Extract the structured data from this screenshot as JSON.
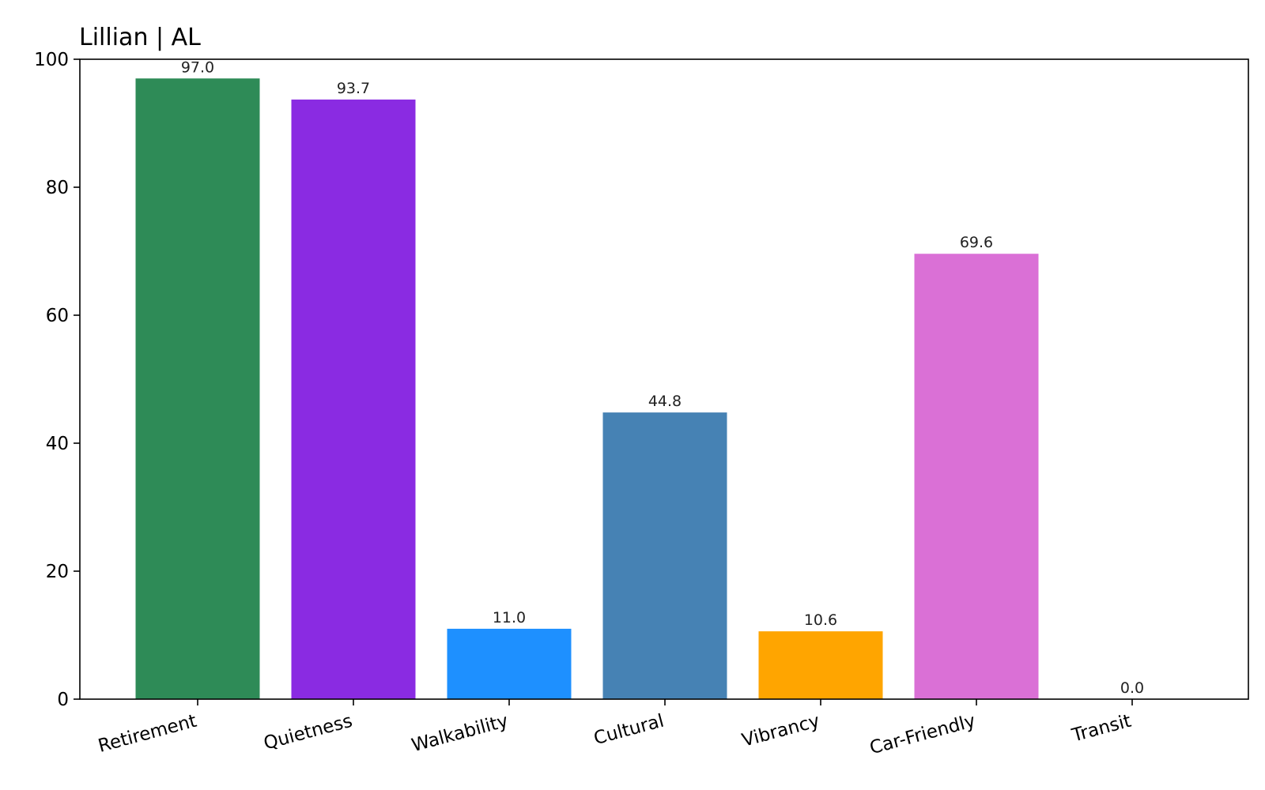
{
  "chart_data": {
    "type": "bar",
    "title": "Lillian | AL",
    "xlabel": "",
    "ylabel": "",
    "categories": [
      "Retirement",
      "Quietness",
      "Walkability",
      "Cultural",
      "Vibrancy",
      "Car-Friendly",
      "Transit"
    ],
    "values": [
      97.0,
      93.7,
      11.0,
      44.8,
      10.6,
      69.6,
      0.0
    ],
    "value_labels": [
      "97.0",
      "93.7",
      "11.0",
      "44.8",
      "10.6",
      "69.6",
      "0.0"
    ],
    "colors": [
      "#2e8b57",
      "#8a2be2",
      "#1e90ff",
      "#4682b4",
      "#ffa500",
      "#da70d6",
      "#808080"
    ],
    "ylim": [
      0,
      100
    ],
    "yticks": [
      0,
      20,
      40,
      60,
      80,
      100
    ],
    "ytick_labels": [
      "0",
      "20",
      "40",
      "60",
      "80",
      "100"
    ],
    "grid": false,
    "legend": "none"
  }
}
